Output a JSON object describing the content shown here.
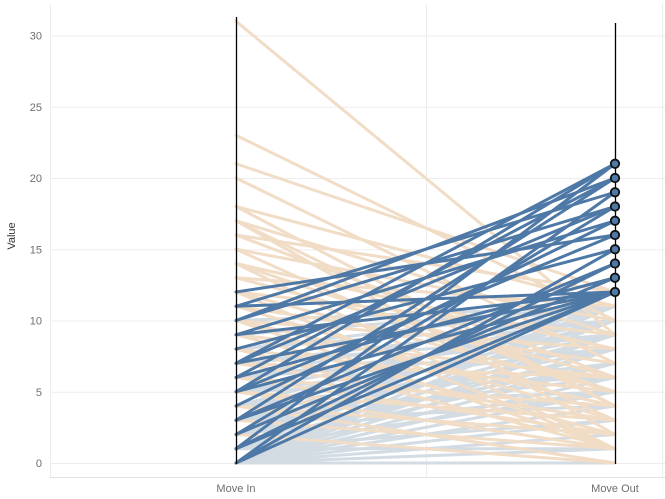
{
  "chart_data": {
    "type": "line",
    "subtype": "slope",
    "title": "",
    "xlabel": "",
    "ylabel": "Value",
    "categories": [
      "Move In",
      "Move Out"
    ],
    "ylim": [
      0,
      32
    ],
    "yticks": [
      0,
      5,
      10,
      15,
      20,
      25,
      30
    ],
    "grid": true,
    "colors": {
      "highlight": "#4e79a7",
      "decrease": "#f1dcc6",
      "other": "#d3dbe3",
      "axis": "#000000",
      "grid": "#ededed",
      "marker_edge": "#111111"
    },
    "groups": [
      {
        "name": "highlighted",
        "color_key": "highlight",
        "pairs": [
          [
            1,
            21
          ],
          [
            5,
            21
          ],
          [
            7,
            21
          ],
          [
            10,
            20
          ],
          [
            3,
            20
          ],
          [
            6,
            20
          ],
          [
            11,
            19
          ],
          [
            0,
            19
          ],
          [
            7,
            18
          ],
          [
            10,
            18
          ],
          [
            2,
            18
          ],
          [
            4,
            17
          ],
          [
            9,
            17
          ],
          [
            12,
            16
          ],
          [
            5,
            16
          ],
          [
            0,
            15
          ],
          [
            8,
            15
          ],
          [
            3,
            14
          ],
          [
            1,
            14
          ],
          [
            6,
            13
          ],
          [
            2,
            13
          ],
          [
            11,
            12
          ],
          [
            9,
            12
          ],
          [
            7,
            12
          ],
          [
            5,
            12
          ],
          [
            3,
            12
          ],
          [
            1,
            12
          ],
          [
            0,
            12
          ]
        ]
      },
      {
        "name": "decreasing",
        "color_key": "decrease",
        "pairs": [
          [
            31,
            9
          ],
          [
            23,
            10
          ],
          [
            21,
            12
          ],
          [
            20,
            7
          ],
          [
            18,
            4
          ],
          [
            18,
            11
          ],
          [
            17,
            9
          ],
          [
            17,
            2
          ],
          [
            16,
            6
          ],
          [
            16,
            12
          ],
          [
            15,
            10
          ],
          [
            15,
            3
          ],
          [
            14,
            8
          ],
          [
            14,
            1
          ],
          [
            13,
            6
          ],
          [
            13,
            11
          ],
          [
            12,
            5
          ],
          [
            12,
            9
          ],
          [
            11,
            3
          ],
          [
            11,
            7
          ],
          [
            10,
            4
          ],
          [
            10,
            8
          ],
          [
            9,
            2
          ],
          [
            9,
            6
          ],
          [
            8,
            1
          ],
          [
            8,
            5
          ],
          [
            7,
            3
          ],
          [
            7,
            6
          ],
          [
            6,
            2
          ],
          [
            6,
            4
          ],
          [
            5,
            1
          ],
          [
            5,
            3
          ],
          [
            4,
            0
          ],
          [
            4,
            2
          ],
          [
            3,
            1
          ],
          [
            2,
            0
          ],
          [
            12,
            1
          ],
          [
            17,
            4
          ],
          [
            14,
            5
          ],
          [
            10,
            1
          ]
        ]
      },
      {
        "name": "other",
        "color_key": "other",
        "pairs": [
          [
            0,
            11
          ],
          [
            0,
            10
          ],
          [
            0,
            9
          ],
          [
            0,
            8
          ],
          [
            0,
            7
          ],
          [
            0,
            6
          ],
          [
            0,
            5
          ],
          [
            0,
            4
          ],
          [
            0,
            3
          ],
          [
            0,
            2
          ],
          [
            0,
            1
          ],
          [
            1,
            11
          ],
          [
            1,
            9
          ],
          [
            1,
            8
          ],
          [
            1,
            7
          ],
          [
            1,
            5
          ],
          [
            1,
            3
          ],
          [
            2,
            11
          ],
          [
            2,
            10
          ],
          [
            2,
            9
          ],
          [
            2,
            7
          ],
          [
            2,
            5
          ],
          [
            3,
            10
          ],
          [
            3,
            8
          ],
          [
            3,
            6
          ],
          [
            3,
            4
          ],
          [
            4,
            11
          ],
          [
            4,
            9
          ],
          [
            4,
            7
          ],
          [
            4,
            5
          ],
          [
            5,
            10
          ],
          [
            5,
            8
          ],
          [
            5,
            6
          ],
          [
            6,
            11
          ],
          [
            6,
            9
          ],
          [
            6,
            8
          ],
          [
            7,
            10
          ],
          [
            7,
            9
          ],
          [
            8,
            11
          ],
          [
            8,
            10
          ],
          [
            9,
            11
          ],
          [
            10,
            11
          ],
          [
            1,
            1
          ],
          [
            0,
            0
          ]
        ]
      }
    ],
    "markers": {
      "category": "Move Out",
      "values": [
        12,
        13,
        14,
        15,
        16,
        17,
        18,
        19,
        20,
        21
      ]
    }
  }
}
